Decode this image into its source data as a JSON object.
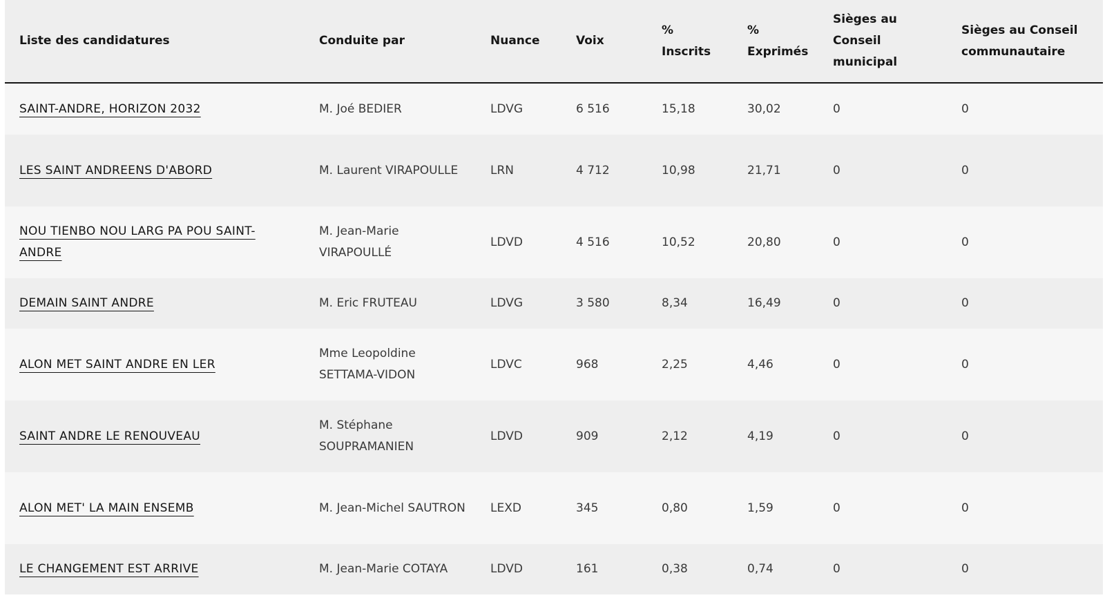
{
  "table": {
    "headers": {
      "list": "Liste des candidatures",
      "leader": "Conduite par",
      "nuance": "Nuance",
      "votes": "Voix",
      "pct_registered": "% Inscrits",
      "pct_cast": "% Exprimés",
      "seats_municipal": "Sièges au Conseil municipal",
      "seats_community": "Sièges au Conseil communautaire"
    },
    "rows": [
      {
        "list": "SAINT-ANDRE, HORIZON 2032",
        "leader": "M. Joé BEDIER",
        "nuance": "LDVG",
        "votes": "6 516",
        "pct_registered": "15,18",
        "pct_cast": "30,02",
        "seats_municipal": "0",
        "seats_community": "0"
      },
      {
        "list": "LES SAINT ANDREENS D'ABORD",
        "leader": "M. Laurent VIRAPOULLE",
        "nuance": "LRN",
        "votes": "4 712",
        "pct_registered": "10,98",
        "pct_cast": "21,71",
        "seats_municipal": "0",
        "seats_community": "0"
      },
      {
        "list": "NOU TIENBO NOU LARG PA POU SAINT-ANDRE",
        "leader": "M. Jean-Marie VIRAPOULLÉ",
        "nuance": "LDVD",
        "votes": "4 516",
        "pct_registered": "10,52",
        "pct_cast": "20,80",
        "seats_municipal": "0",
        "seats_community": "0"
      },
      {
        "list": "DEMAIN SAINT ANDRE",
        "leader": "M. Eric FRUTEAU",
        "nuance": "LDVG",
        "votes": "3 580",
        "pct_registered": "8,34",
        "pct_cast": "16,49",
        "seats_municipal": "0",
        "seats_community": "0"
      },
      {
        "list": "ALON MET SAINT ANDRE EN LER",
        "leader": "Mme Leopoldine SETTAMA-VIDON",
        "nuance": "LDVC",
        "votes": "968",
        "pct_registered": "2,25",
        "pct_cast": "4,46",
        "seats_municipal": "0",
        "seats_community": "0"
      },
      {
        "list": "SAINT ANDRE LE RENOUVEAU",
        "leader": "M. Stéphane SOUPRAMANIEN",
        "nuance": "LDVD",
        "votes": "909",
        "pct_registered": "2,12",
        "pct_cast": "4,19",
        "seats_municipal": "0",
        "seats_community": "0"
      },
      {
        "list": "ALON MET' LA MAIN ENSEMB",
        "leader": "M. Jean-Michel SAUTRON",
        "nuance": "LEXD",
        "votes": "345",
        "pct_registered": "0,80",
        "pct_cast": "1,59",
        "seats_municipal": "0",
        "seats_community": "0"
      },
      {
        "list": "LE CHANGEMENT EST ARRIVE",
        "leader": "M. Jean-Marie COTAYA",
        "nuance": "LDVD",
        "votes": "161",
        "pct_registered": "0,38",
        "pct_cast": "0,74",
        "seats_municipal": "0",
        "seats_community": "0"
      }
    ]
  }
}
